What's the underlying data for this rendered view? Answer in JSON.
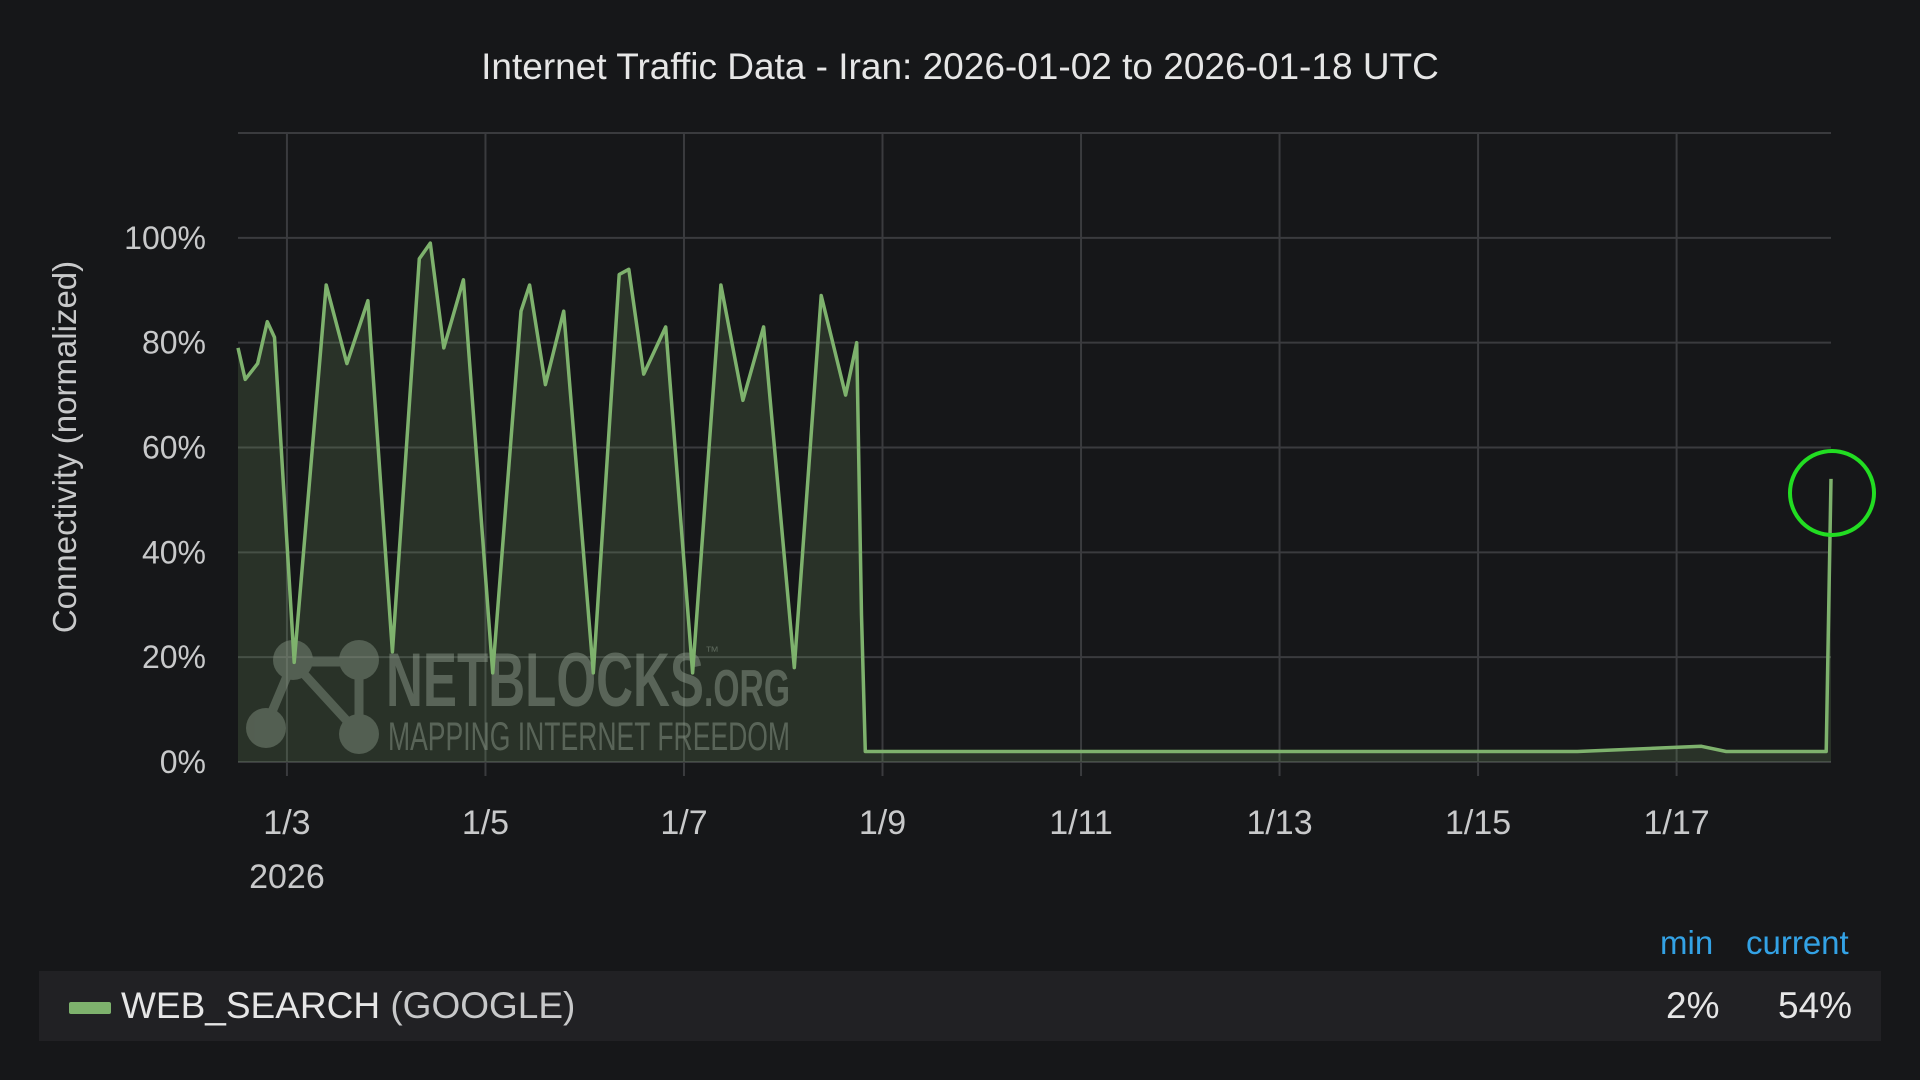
{
  "chart_data": {
    "type": "area",
    "title": "Internet Traffic Data - Iran: 2026-01-02 to 2026-01-18 UTC",
    "ylabel": "Connectivity (normalized)",
    "xlabel": "",
    "xlim": [
      "2026-01-02T12:10",
      "2026-01-18T13:20"
    ],
    "ylim": [
      0,
      120
    ],
    "y_ticks": [
      0,
      20,
      40,
      60,
      80,
      100
    ],
    "y_tick_labels": [
      "0%",
      "20%",
      "40%",
      "60%",
      "80%",
      "100%"
    ],
    "x_ticks": [
      "2026-01-03",
      "2026-01-05",
      "2026-01-07",
      "2026-01-09",
      "2026-01-11",
      "2026-01-13",
      "2026-01-15",
      "2026-01-17"
    ],
    "x_tick_labels": [
      "1/3",
      "1/5",
      "1/7",
      "1/9",
      "1/11",
      "1/13",
      "1/15",
      "1/17"
    ],
    "x_year_label": "2026",
    "grid": true,
    "series": [
      {
        "name": "WEB_SEARCH (GOOGLE)",
        "color": "#7eb26d",
        "points": [
          [
            "2026-01-02T12:10",
            79
          ],
          [
            "2026-01-02T13:55",
            73
          ],
          [
            "2026-01-02T16:55",
            76
          ],
          [
            "2026-01-02T19:15",
            84
          ],
          [
            "2026-01-02T21:00",
            81
          ],
          [
            "2026-01-03T01:45",
            19
          ],
          [
            "2026-01-03T09:30",
            91
          ],
          [
            "2026-01-03T14:30",
            76
          ],
          [
            "2026-01-03T19:35",
            88
          ],
          [
            "2026-01-04T01:30",
            21
          ],
          [
            "2026-01-04T08:00",
            96
          ],
          [
            "2026-01-04T10:40",
            99
          ],
          [
            "2026-01-04T13:55",
            79
          ],
          [
            "2026-01-04T18:40",
            92
          ],
          [
            "2026-01-05T01:45",
            17
          ],
          [
            "2026-01-05T08:35",
            86
          ],
          [
            "2026-01-05T10:40",
            91
          ],
          [
            "2026-01-05T14:30",
            72
          ],
          [
            "2026-01-05T18:55",
            86
          ],
          [
            "2026-01-06T02:05",
            17
          ],
          [
            "2026-01-06T08:20",
            93
          ],
          [
            "2026-01-06T10:40",
            94
          ],
          [
            "2026-01-06T14:15",
            74
          ],
          [
            "2026-01-06T19:35",
            83
          ],
          [
            "2026-01-07T02:05",
            17
          ],
          [
            "2026-01-07T08:55",
            91
          ],
          [
            "2026-01-07T14:15",
            69
          ],
          [
            "2026-01-07T19:15",
            83
          ],
          [
            "2026-01-08T02:40",
            18
          ],
          [
            "2026-01-08T09:10",
            89
          ],
          [
            "2026-01-08T15:05",
            70
          ],
          [
            "2026-01-08T17:45",
            80
          ],
          [
            "2026-01-08T18:55",
            28
          ],
          [
            "2026-01-08T19:50",
            2
          ],
          [
            "2026-01-10T00:00",
            2
          ],
          [
            "2026-01-12T00:00",
            2
          ],
          [
            "2026-01-14T00:00",
            2
          ],
          [
            "2026-01-16T00:00",
            2
          ],
          [
            "2026-01-17T06:00",
            3
          ],
          [
            "2026-01-17T12:00",
            2
          ],
          [
            "2026-01-18T12:10",
            2
          ],
          [
            "2026-01-18T13:20",
            54
          ]
        ]
      }
    ],
    "annotation": {
      "type": "circle",
      "at": [
        "2026-01-18T13:20",
        54
      ],
      "color": "#22dd22"
    },
    "legend": {
      "placement": "bottom",
      "columns": [
        "min",
        "current"
      ],
      "values": {
        "min": "2%",
        "current": "54%"
      }
    }
  },
  "legend": {
    "name": "WEB_SEARCH",
    "source": "(GOOGLE)",
    "min_header": "min",
    "current_header": "current",
    "min_value": "2%",
    "current_value": "54%"
  },
  "watermark": {
    "brand": "NETBLOCKS",
    "tld": ".ORG",
    "tm": "™",
    "tagline": "MAPPING INTERNET FREEDOM"
  },
  "colors": {
    "background": "#161719",
    "series": "#7eb26d",
    "accent": "#33a2e5",
    "legend_bg": "#212124",
    "highlight": "#22dd22"
  }
}
